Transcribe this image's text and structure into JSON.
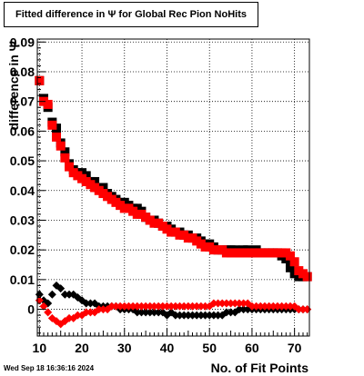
{
  "timestamp": "Wed Sep 18 16:36:16 2024",
  "chart_data": {
    "type": "scatter",
    "title": "Fitted difference in  Ψ  for Global Rec Pion NoHits",
    "xlabel": "No. of Fit Points",
    "ylabel": "difference in  Ψ",
    "xlim": [
      9.5,
      73.5
    ],
    "ylim": [
      -0.009,
      0.091
    ],
    "xticks": [
      10,
      20,
      30,
      40,
      50,
      60,
      70
    ],
    "xtick_labels": [
      "10",
      "20",
      "30",
      "40",
      "50",
      "60",
      "70"
    ],
    "yticks": [
      0,
      0.01,
      0.02,
      0.03,
      0.04,
      0.05,
      0.06,
      0.07,
      0.08,
      0.09
    ],
    "ytick_labels": [
      "0",
      "0.01",
      "0.02",
      "0.03",
      "0.04",
      "0.05",
      "0.06",
      "0.07",
      "0.08",
      "0.09"
    ],
    "grid": true,
    "series": [
      {
        "marker": "square",
        "color": "#000000",
        "x": [
          10,
          11,
          12,
          13,
          14,
          15,
          16,
          17,
          18,
          19,
          20,
          21,
          22,
          23,
          24,
          25,
          26,
          27,
          28,
          29,
          30,
          31,
          32,
          33,
          34,
          35,
          36,
          37,
          38,
          39,
          40,
          41,
          42,
          43,
          44,
          45,
          46,
          47,
          48,
          49,
          50,
          51,
          52,
          53,
          54,
          55,
          56,
          57,
          58,
          59,
          60,
          61,
          62,
          63,
          64,
          65,
          66,
          67,
          68,
          69,
          70,
          71,
          72,
          73
        ],
        "y": [
          0.077,
          0.071,
          0.068,
          0.063,
          0.061,
          0.056,
          0.053,
          0.049,
          0.047,
          0.046,
          0.046,
          0.045,
          0.043,
          0.043,
          0.041,
          0.041,
          0.039,
          0.038,
          0.037,
          0.036,
          0.036,
          0.035,
          0.034,
          0.034,
          0.033,
          0.031,
          0.03,
          0.03,
          0.029,
          0.028,
          0.028,
          0.027,
          0.026,
          0.026,
          0.025,
          0.025,
          0.024,
          0.024,
          0.023,
          0.022,
          0.022,
          0.021,
          0.02,
          0.02,
          0.02,
          0.02,
          0.02,
          0.019,
          0.02,
          0.02,
          0.019,
          0.02,
          0.019,
          0.019,
          0.019,
          0.019,
          0.019,
          0.018,
          0.017,
          0.014,
          0.012,
          0.011,
          0.011,
          0.011
        ]
      },
      {
        "marker": "square",
        "color": "#ff0000",
        "x": [
          10,
          11,
          12,
          13,
          14,
          15,
          16,
          17,
          18,
          19,
          20,
          21,
          22,
          23,
          24,
          25,
          26,
          27,
          28,
          29,
          30,
          31,
          32,
          33,
          34,
          35,
          36,
          37,
          38,
          39,
          40,
          41,
          42,
          43,
          44,
          45,
          46,
          47,
          48,
          49,
          50,
          51,
          52,
          53,
          54,
          55,
          56,
          57,
          58,
          59,
          60,
          61,
          62,
          63,
          64,
          65,
          66,
          67,
          68,
          69,
          70,
          71,
          72,
          73
        ],
        "y": [
          0.077,
          0.07,
          0.069,
          0.062,
          0.058,
          0.055,
          0.051,
          0.048,
          0.046,
          0.045,
          0.044,
          0.043,
          0.042,
          0.041,
          0.04,
          0.039,
          0.038,
          0.037,
          0.036,
          0.035,
          0.034,
          0.034,
          0.033,
          0.032,
          0.032,
          0.031,
          0.03,
          0.029,
          0.029,
          0.028,
          0.027,
          0.026,
          0.026,
          0.025,
          0.025,
          0.024,
          0.024,
          0.023,
          0.022,
          0.021,
          0.021,
          0.02,
          0.02,
          0.02,
          0.019,
          0.019,
          0.019,
          0.019,
          0.019,
          0.019,
          0.019,
          0.019,
          0.019,
          0.019,
          0.019,
          0.019,
          0.019,
          0.019,
          0.019,
          0.018,
          0.016,
          0.013,
          0.012,
          0.011
        ]
      },
      {
        "marker": "diamond",
        "color": "#000000",
        "x": [
          10,
          11,
          12,
          13,
          14,
          15,
          16,
          17,
          18,
          19,
          20,
          21,
          22,
          23,
          24,
          25,
          26,
          27,
          28,
          29,
          30,
          31,
          32,
          33,
          34,
          35,
          36,
          37,
          38,
          39,
          40,
          41,
          42,
          43,
          44,
          45,
          46,
          47,
          48,
          49,
          50,
          51,
          52,
          53,
          54,
          55,
          56,
          57,
          58,
          59,
          60,
          61,
          62,
          63,
          64,
          65,
          66,
          67,
          68,
          69,
          70,
          71,
          72,
          73
        ],
        "y": [
          0.005,
          0.003,
          0.002,
          0.005,
          0.008,
          0.007,
          0.005,
          0.005,
          0.005,
          0.004,
          0.003,
          0.002,
          0.002,
          0.002,
          0.001,
          0.001,
          0.001,
          0.001,
          0.001,
          0.0,
          0.0,
          0.0,
          0.0,
          -0.001,
          -0.001,
          -0.001,
          -0.001,
          -0.001,
          -0.001,
          -0.001,
          -0.002,
          -0.001,
          -0.002,
          -0.002,
          -0.002,
          -0.002,
          -0.002,
          -0.002,
          -0.002,
          -0.002,
          -0.002,
          -0.002,
          -0.002,
          -0.002,
          -0.001,
          -0.001,
          -0.001,
          0.0,
          0.0,
          0.0,
          0.0,
          0.0,
          0.0,
          0.0,
          0.0,
          0.0,
          0.0,
          0.0,
          0.0,
          0.0,
          0.0,
          0.0,
          0.0,
          0.0
        ]
      },
      {
        "marker": "diamond",
        "color": "#ff0000",
        "x": [
          10,
          11,
          12,
          13,
          14,
          15,
          16,
          17,
          18,
          19,
          20,
          21,
          22,
          23,
          24,
          25,
          26,
          27,
          28,
          29,
          30,
          31,
          32,
          33,
          34,
          35,
          36,
          37,
          38,
          39,
          40,
          41,
          42,
          43,
          44,
          45,
          46,
          47,
          48,
          49,
          50,
          51,
          52,
          53,
          54,
          55,
          56,
          57,
          58,
          59,
          60,
          61,
          62,
          63,
          64,
          65,
          66,
          67,
          68,
          69,
          70,
          71,
          72,
          73
        ],
        "y": [
          0.003,
          0.001,
          -0.001,
          -0.003,
          -0.004,
          -0.005,
          -0.004,
          -0.003,
          -0.003,
          -0.002,
          -0.002,
          -0.001,
          -0.001,
          -0.001,
          0.0,
          0.0,
          0.0,
          0.001,
          0.001,
          0.001,
          0.001,
          0.001,
          0.001,
          0.001,
          0.001,
          0.001,
          0.001,
          0.001,
          0.001,
          0.001,
          0.001,
          0.001,
          0.001,
          0.001,
          0.001,
          0.001,
          0.001,
          0.001,
          0.001,
          0.001,
          0.001,
          0.002,
          0.002,
          0.002,
          0.002,
          0.002,
          0.002,
          0.002,
          0.002,
          0.002,
          0.001,
          0.001,
          0.001,
          0.001,
          0.001,
          0.001,
          0.001,
          0.001,
          0.001,
          0.001,
          0.001,
          0.0,
          0.0,
          0.0
        ]
      }
    ]
  }
}
